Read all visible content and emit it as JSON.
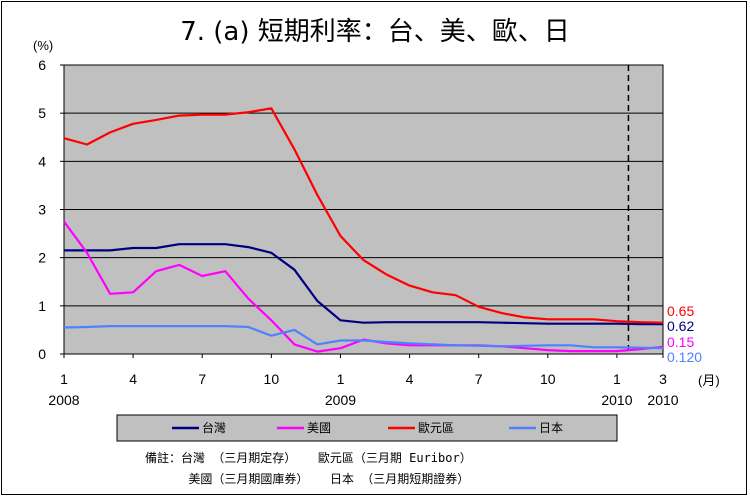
{
  "chart_data": {
    "type": "line",
    "title": "7. (a)  短期利率：台、美、歐、日",
    "y_unit": "(%)",
    "x_unit": "(月)",
    "ylim": [
      0,
      6
    ],
    "y_ticks": [
      "0",
      "1",
      "2",
      "3",
      "4",
      "5",
      "6"
    ],
    "x_count": 27,
    "x_ticks": [
      {
        "index": 0,
        "label": "1",
        "year": "2008"
      },
      {
        "index": 3,
        "label": "4",
        "year": ""
      },
      {
        "index": 6,
        "label": "7",
        "year": ""
      },
      {
        "index": 9,
        "label": "10",
        "year": ""
      },
      {
        "index": 12,
        "label": "1",
        "year": "2009"
      },
      {
        "index": 15,
        "label": "4",
        "year": ""
      },
      {
        "index": 18,
        "label": "7",
        "year": ""
      },
      {
        "index": 21,
        "label": "10",
        "year": ""
      },
      {
        "index": 24,
        "label": "1",
        "year": "2010"
      },
      {
        "index": 26,
        "label": "3",
        "year": "2010"
      }
    ],
    "grid": true,
    "background": "#c0c0c0",
    "divider_after_index": 24.5,
    "series": [
      {
        "name": "台灣",
        "color": "#00007f",
        "values": [
          2.15,
          2.15,
          2.15,
          2.2,
          2.2,
          2.28,
          2.28,
          2.28,
          2.22,
          2.1,
          1.75,
          1.1,
          0.7,
          0.65,
          0.66,
          0.66,
          0.66,
          0.66,
          0.66,
          0.65,
          0.64,
          0.63,
          0.63,
          0.63,
          0.63,
          0.62,
          0.62
        ]
      },
      {
        "name": "美國",
        "color": "#ff00ff",
        "values": [
          2.75,
          2.1,
          1.25,
          1.28,
          1.72,
          1.85,
          1.62,
          1.72,
          1.15,
          0.7,
          0.2,
          0.05,
          0.12,
          0.3,
          0.22,
          0.18,
          0.18,
          0.18,
          0.18,
          0.16,
          0.12,
          0.08,
          0.06,
          0.06,
          0.06,
          0.1,
          0.15
        ]
      },
      {
        "name": "歐元區",
        "color": "#ff0000",
        "values": [
          4.48,
          4.35,
          4.6,
          4.78,
          4.86,
          4.95,
          4.97,
          4.97,
          5.02,
          5.1,
          4.25,
          3.3,
          2.45,
          1.95,
          1.65,
          1.42,
          1.28,
          1.22,
          0.98,
          0.85,
          0.76,
          0.72,
          0.72,
          0.72,
          0.68,
          0.66,
          0.65
        ]
      },
      {
        "name": "日本",
        "color": "#4f81ff",
        "values": [
          0.55,
          0.56,
          0.58,
          0.58,
          0.58,
          0.58,
          0.58,
          0.58,
          0.56,
          0.38,
          0.5,
          0.2,
          0.28,
          0.28,
          0.25,
          0.22,
          0.2,
          0.18,
          0.17,
          0.16,
          0.17,
          0.18,
          0.18,
          0.14,
          0.14,
          0.13,
          0.12
        ]
      }
    ],
    "end_labels": [
      {
        "text": "0.65",
        "color": "#ff0000"
      },
      {
        "text": "0.62",
        "color": "#00007f"
      },
      {
        "text": "0.15",
        "color": "#ff00ff"
      },
      {
        "text": "0.120",
        "color": "#4f81ff"
      }
    ]
  },
  "footnote": {
    "line1": "備註：台灣 （三月期定存）   歐元區（三月期 Euribor）",
    "line2": "      美國（三月期國庫券）   日本 （三月期短期證券）"
  }
}
